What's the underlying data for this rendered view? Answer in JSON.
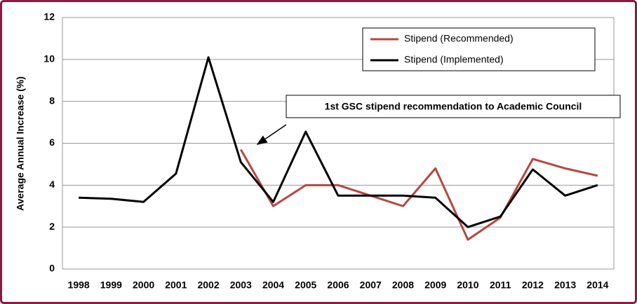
{
  "chart_data": {
    "type": "line",
    "y_label": "Average Annual Increase (%)",
    "annotation": "1st GSC stipend recommendation to Academic Council",
    "categories": [
      "1998",
      "1999",
      "2000",
      "2001",
      "2002",
      "2003",
      "2004",
      "2005",
      "2006",
      "2007",
      "2008",
      "2009",
      "2010",
      "2011",
      "2012",
      "2013",
      "2014"
    ],
    "series": [
      {
        "name": "Stipend (Recommended)",
        "color": "#b5483f",
        "values": [
          null,
          null,
          null,
          null,
          null,
          5.7,
          3.0,
          4.0,
          4.0,
          3.5,
          3.0,
          4.8,
          1.4,
          2.45,
          5.25,
          4.8,
          4.45
        ]
      },
      {
        "name": "Stipend (Implemented)",
        "color": "#000000",
        "values": [
          3.4,
          3.35,
          3.2,
          4.55,
          10.1,
          5.1,
          3.2,
          6.55,
          3.5,
          3.5,
          3.5,
          3.4,
          2.0,
          2.5,
          4.75,
          3.5,
          4.0
        ]
      }
    ],
    "ylim": [
      0,
      12
    ],
    "yticks": [
      0,
      2,
      4,
      6,
      8,
      10,
      12
    ],
    "grid": true,
    "legend": "top-right"
  }
}
